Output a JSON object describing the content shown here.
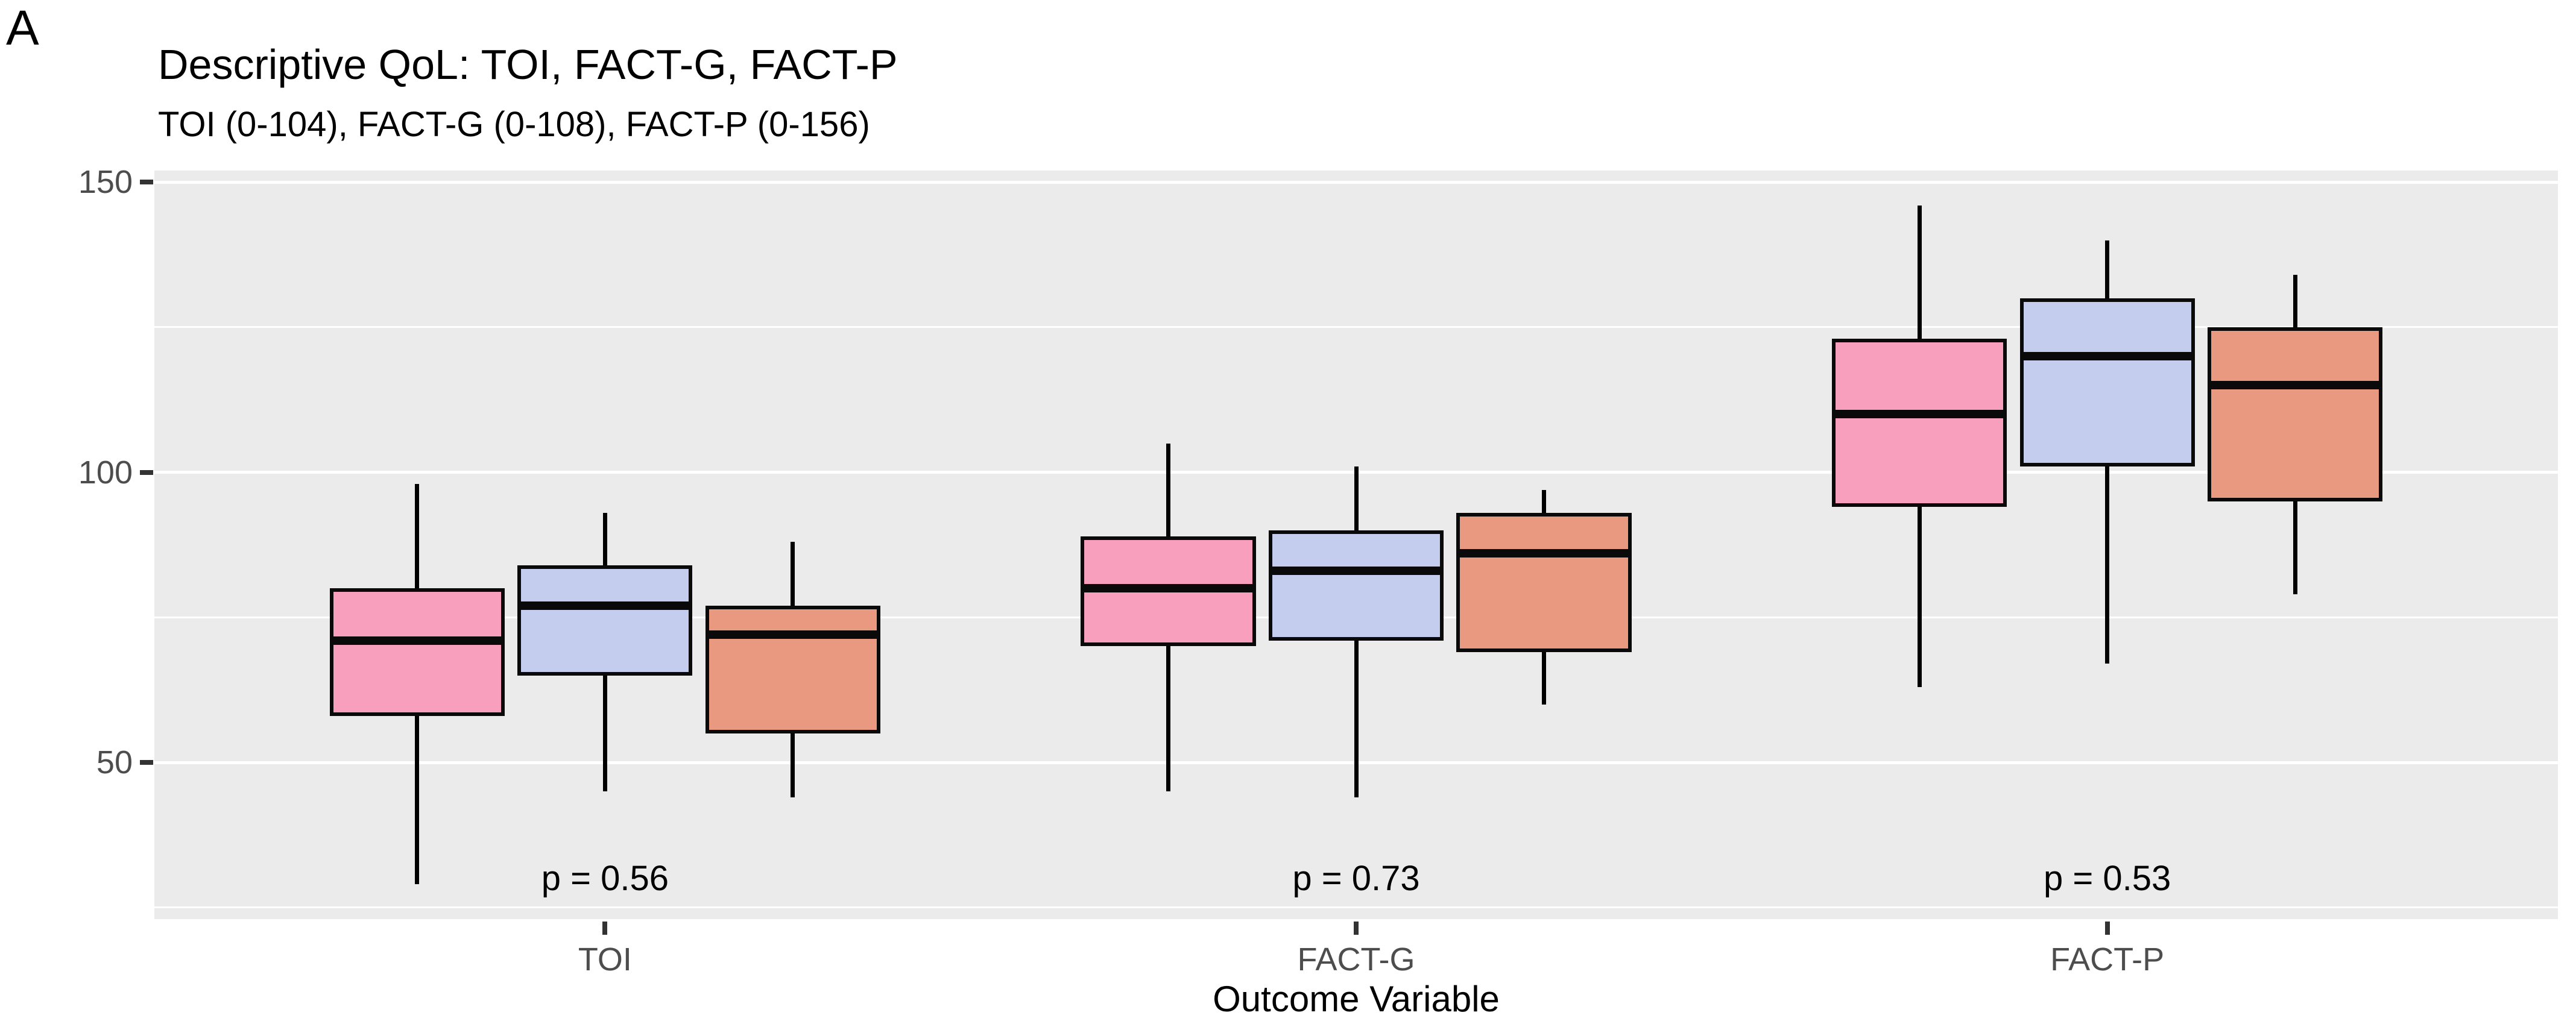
{
  "figure": {
    "panel_label": "A",
    "panel_bg": "#EBEBEB",
    "gridline_color": "#ffffff",
    "axis_text_color": "#4d4d4d",
    "box_outline_color": "#0a0a0a"
  },
  "chart_data": {
    "type": "boxplot",
    "title": "Descriptive QoL: TOI, FACT-G, FACT-P",
    "subtitle": "TOI (0-104), FACT-G (0-108), FACT-P (0-156)",
    "xlabel": "Outcome Variable",
    "ylabel": "",
    "categories": [
      "TOI",
      "FACT-G",
      "FACT-P"
    ],
    "ylim": [
      23,
      152
    ],
    "y_major_ticks": [
      50,
      100,
      150
    ],
    "y_minor_gridlines": [
      25,
      75,
      125
    ],
    "grid": "on",
    "legend": "none",
    "series": [
      {
        "name": "series-1-pink",
        "color": "#F89FBE",
        "boxes": [
          {
            "category": "TOI",
            "min": 29,
            "q1": 58,
            "median": 71,
            "q3": 80,
            "max": 98
          },
          {
            "category": "FACT-G",
            "min": 45,
            "q1": 70,
            "median": 80,
            "q3": 89,
            "max": 105
          },
          {
            "category": "FACT-P",
            "min": 63,
            "q1": 94,
            "median": 110,
            "q3": 123,
            "max": 146
          }
        ]
      },
      {
        "name": "series-2-lavender",
        "color": "#C5CDEF",
        "boxes": [
          {
            "category": "TOI",
            "min": 45,
            "q1": 65,
            "median": 77,
            "q3": 84,
            "max": 93
          },
          {
            "category": "FACT-G",
            "min": 44,
            "q1": 71,
            "median": 83,
            "q3": 90,
            "max": 101
          },
          {
            "category": "FACT-P",
            "min": 67,
            "q1": 101,
            "median": 120,
            "q3": 130,
            "max": 140
          }
        ]
      },
      {
        "name": "series-3-salmon",
        "color": "#E8997F",
        "boxes": [
          {
            "category": "TOI",
            "min": 44,
            "q1": 55,
            "median": 72,
            "q3": 77,
            "max": 88
          },
          {
            "category": "FACT-G",
            "min": 60,
            "q1": 69,
            "median": 86,
            "q3": 93,
            "max": 97
          },
          {
            "category": "FACT-P",
            "min": 79,
            "q1": 95,
            "median": 115,
            "q3": 125,
            "max": 134
          }
        ]
      }
    ],
    "annotations": [
      {
        "label": "p = 0.56",
        "category": "TOI",
        "y": 30
      },
      {
        "label": "p = 0.73",
        "category": "FACT-G",
        "y": 30
      },
      {
        "label": "p = 0.53",
        "category": "FACT-P",
        "y": 30
      }
    ]
  }
}
